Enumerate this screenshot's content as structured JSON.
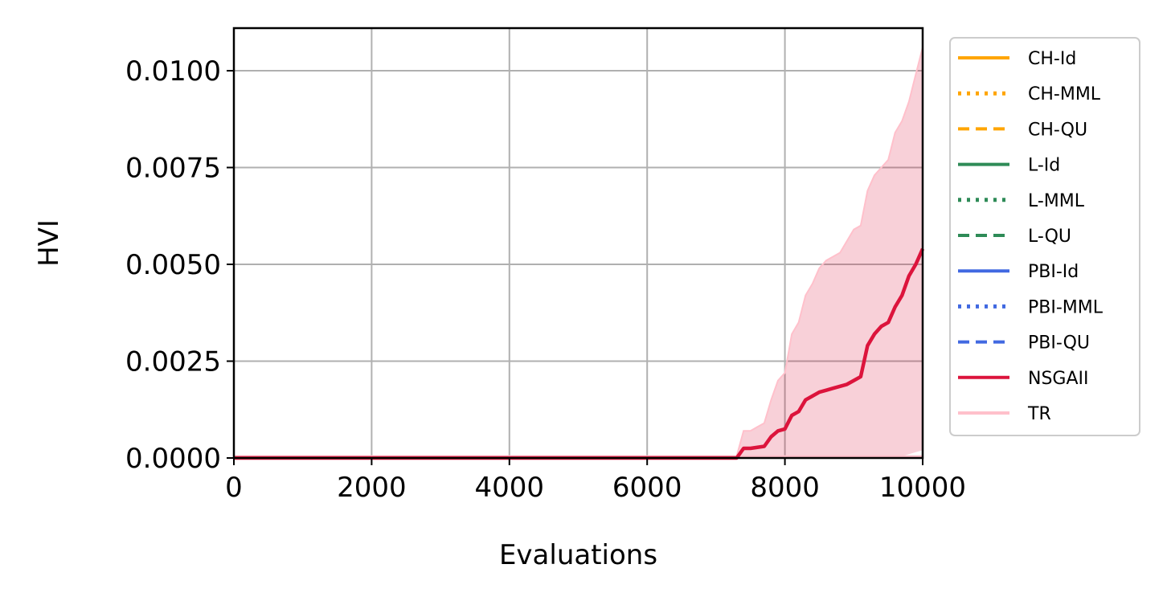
{
  "chart_data": {
    "type": "line",
    "xlabel": "Evaluations",
    "ylabel": "HVI",
    "xlim": [
      0,
      10000
    ],
    "ylim": [
      0,
      0.0111
    ],
    "x_ticks": [
      0,
      2000,
      4000,
      6000,
      8000,
      10000
    ],
    "x_tick_labels": [
      "0",
      "2000",
      "4000",
      "6000",
      "8000",
      "10000"
    ],
    "y_ticks": [
      0,
      0.0025,
      0.005,
      0.0075,
      0.01
    ],
    "y_tick_labels": [
      "0.0000",
      "0.0025",
      "0.0050",
      "0.0075",
      "0.0100"
    ],
    "grid": true,
    "legend_position": "outside-right",
    "colors": {
      "CH": "#ffa500",
      "L": "#2e8b57",
      "PBI": "#4169e1",
      "NSGAII": "#dc143c",
      "TR": "#ffc0cb"
    },
    "legend": [
      {
        "label": "CH-Id",
        "color": "#ffa500",
        "style": "solid"
      },
      {
        "label": "CH-MML",
        "color": "#ffa500",
        "style": "dotted"
      },
      {
        "label": "CH-QU",
        "color": "#ffa500",
        "style": "dashed"
      },
      {
        "label": "L-Id",
        "color": "#2e8b57",
        "style": "solid"
      },
      {
        "label": "L-MML",
        "color": "#2e8b57",
        "style": "dotted"
      },
      {
        "label": "L-QU",
        "color": "#2e8b57",
        "style": "dashed"
      },
      {
        "label": "PBI-Id",
        "color": "#4169e1",
        "style": "solid"
      },
      {
        "label": "PBI-MML",
        "color": "#4169e1",
        "style": "dotted"
      },
      {
        "label": "PBI-QU",
        "color": "#4169e1",
        "style": "dashed"
      },
      {
        "label": "NSGAII",
        "color": "#dc143c",
        "style": "solid"
      },
      {
        "label": "TR",
        "color": "#ffc0cb",
        "style": "solid"
      }
    ],
    "series": [
      {
        "name": "NSGAII",
        "x": [
          0,
          7300,
          7400,
          7500,
          7700,
          7800,
          7900,
          8000,
          8100,
          8200,
          8300,
          8400,
          8500,
          8600,
          8700,
          8800,
          8900,
          9000,
          9100,
          9200,
          9300,
          9400,
          9500,
          9600,
          9700,
          9800,
          9900,
          10000
        ],
        "y": [
          0,
          0,
          0.00025,
          0.00025,
          0.0003,
          0.00055,
          0.0007,
          0.00075,
          0.0011,
          0.0012,
          0.0015,
          0.0016,
          0.0017,
          0.00175,
          0.0018,
          0.00185,
          0.0019,
          0.002,
          0.0021,
          0.0029,
          0.0032,
          0.0034,
          0.0035,
          0.0039,
          0.0042,
          0.0047,
          0.005,
          0.0054
        ]
      },
      {
        "name": "NSGAII band",
        "x": [
          0,
          7300,
          7400,
          7500,
          7600,
          7700,
          7800,
          7900,
          8000,
          8100,
          8200,
          8300,
          8400,
          8500,
          8600,
          8700,
          8800,
          8900,
          9000,
          9100,
          9200,
          9300,
          9400,
          9500,
          9600,
          9700,
          9800,
          9900,
          10000
        ],
        "upper": [
          5e-05,
          5e-05,
          0.0007,
          0.0007,
          0.0008,
          0.0009,
          0.0015,
          0.002,
          0.0022,
          0.0032,
          0.0035,
          0.0042,
          0.0045,
          0.0049,
          0.0051,
          0.0052,
          0.0053,
          0.0056,
          0.0059,
          0.006,
          0.0069,
          0.0073,
          0.0075,
          0.0077,
          0.0084,
          0.0087,
          0.0092,
          0.0099,
          0.0106
        ],
        "lower": [
          0,
          0,
          0,
          0,
          0,
          0,
          0,
          0,
          0,
          0,
          0,
          0,
          0,
          0,
          0,
          0,
          0,
          0,
          0,
          0,
          0,
          0,
          0,
          0,
          0,
          5e-05,
          0.0001,
          0.00015,
          0.0002
        ]
      },
      {
        "name": "TR",
        "x": [
          0,
          10000
        ],
        "y": [
          3e-05,
          3e-05
        ]
      }
    ]
  }
}
